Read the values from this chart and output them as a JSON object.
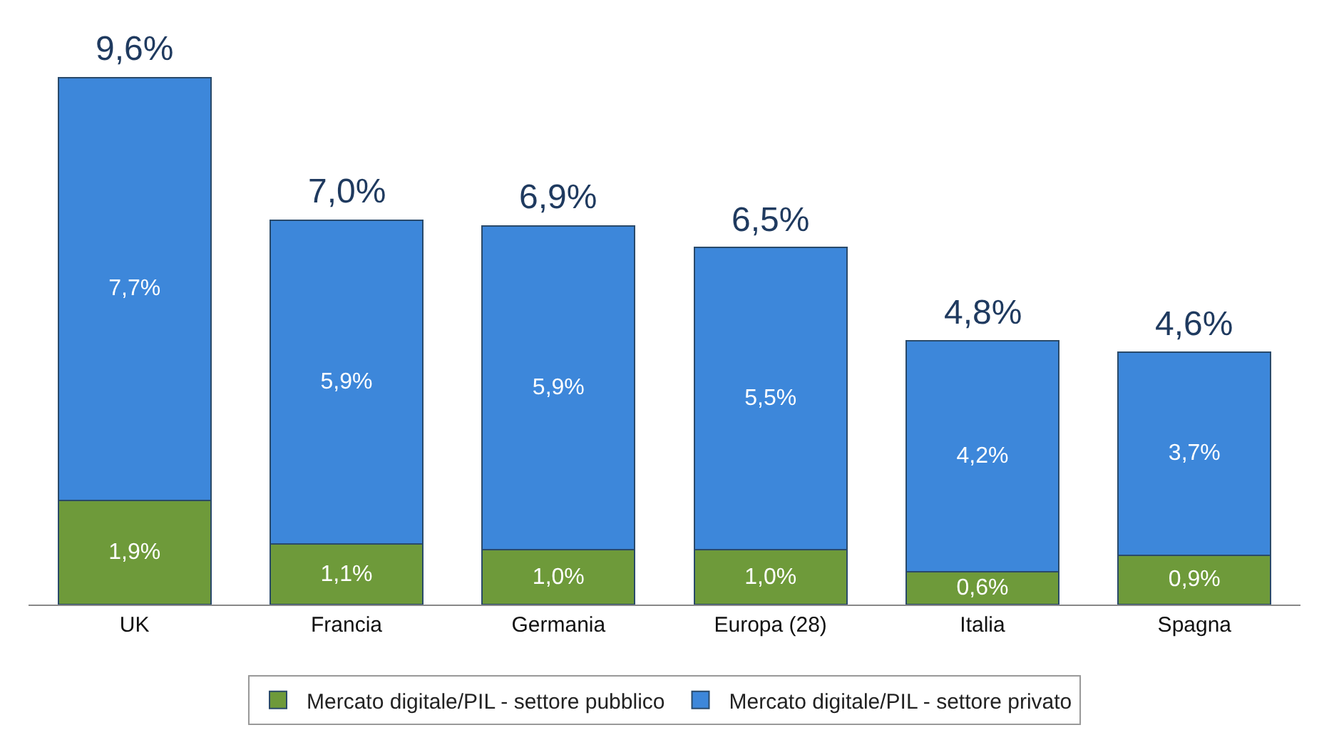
{
  "chart_data": {
    "type": "bar",
    "stacked": true,
    "categories": [
      "UK",
      "Francia",
      "Germania",
      "Europa (28)",
      "Italia",
      "Spagna"
    ],
    "series": [
      {
        "name": "Mercato digitale/PIL - settore pubblico",
        "color": "#6e9a3a",
        "values": [
          1.9,
          1.1,
          1.0,
          1.0,
          0.6,
          0.9
        ],
        "value_labels": [
          "1,9%",
          "1,1%",
          "1,0%",
          "1,0%",
          "0,6%",
          "0,9%"
        ]
      },
      {
        "name": "Mercato digitale/PIL - settore privato",
        "color": "#3d87da",
        "values": [
          7.7,
          5.9,
          5.9,
          5.5,
          4.2,
          3.7
        ],
        "value_labels": [
          "7,7%",
          "5,9%",
          "5,9%",
          "5,5%",
          "4,2%",
          "3,7%"
        ]
      }
    ],
    "totals": [
      "9,6%",
      "7,0%",
      "6,9%",
      "6,5%",
      "4,8%",
      "4,6%"
    ],
    "legend": "bottom"
  }
}
